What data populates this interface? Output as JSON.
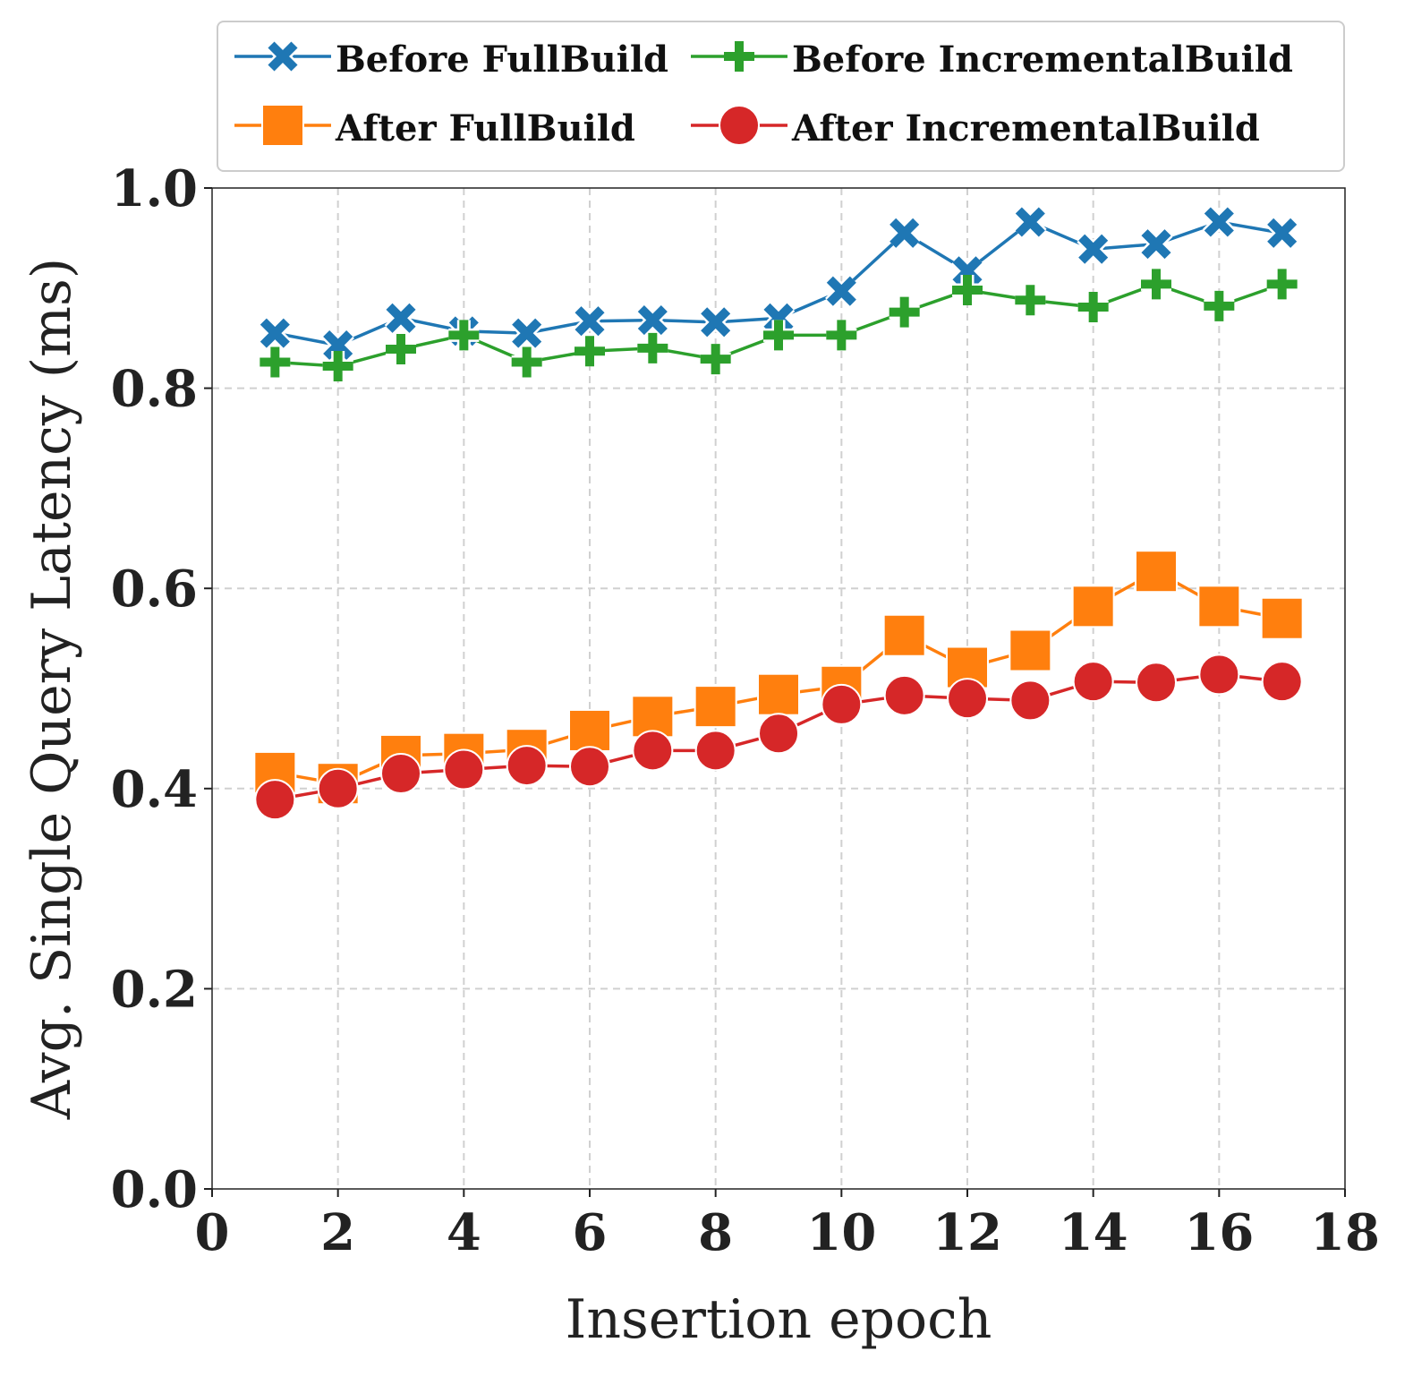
{
  "chart_data": {
    "type": "line",
    "title": "",
    "xlabel": "Insertion epoch",
    "ylabel": "Avg. Single Query Latency (ms)",
    "xlim": [
      0,
      18
    ],
    "ylim": [
      0.0,
      1.0
    ],
    "xticks": [
      "0",
      "2",
      "4",
      "6",
      "8",
      "10",
      "12",
      "14",
      "16",
      "18"
    ],
    "yticks": [
      "0.0",
      "0.2",
      "0.4",
      "0.6",
      "0.8",
      "1.0"
    ],
    "grid": true,
    "legend_position": "top",
    "x": [
      1,
      2,
      3,
      4,
      5,
      6,
      7,
      8,
      9,
      10,
      11,
      12,
      13,
      14,
      15,
      16,
      17
    ],
    "series": [
      {
        "name": "Before FullBuild",
        "color": "#1f77b4",
        "marker": "x-marker",
        "values": [
          0.855,
          0.843,
          0.87,
          0.857,
          0.855,
          0.867,
          0.868,
          0.866,
          0.87,
          0.897,
          0.955,
          0.917,
          0.966,
          0.939,
          0.944,
          0.966,
          0.955
        ]
      },
      {
        "name": "Before IncrementalBuild",
        "color": "#2ca02c",
        "marker": "plus-marker",
        "values": [
          0.826,
          0.822,
          0.839,
          0.853,
          0.826,
          0.837,
          0.84,
          0.829,
          0.853,
          0.853,
          0.876,
          0.898,
          0.888,
          0.881,
          0.904,
          0.882,
          0.904
        ]
      },
      {
        "name": "After FullBuild",
        "color": "#ff7f0e",
        "marker": "square-marker",
        "values": [
          0.416,
          0.405,
          0.433,
          0.435,
          0.439,
          0.458,
          0.472,
          0.482,
          0.494,
          0.502,
          0.553,
          0.521,
          0.538,
          0.582,
          0.617,
          0.582,
          0.57
        ]
      },
      {
        "name": "After IncrementalBuild",
        "color": "#d62728",
        "marker": "circle-marker",
        "values": [
          0.389,
          0.4,
          0.415,
          0.419,
          0.423,
          0.422,
          0.438,
          0.438,
          0.455,
          0.484,
          0.493,
          0.49,
          0.488,
          0.507,
          0.506,
          0.514,
          0.507
        ]
      }
    ]
  }
}
